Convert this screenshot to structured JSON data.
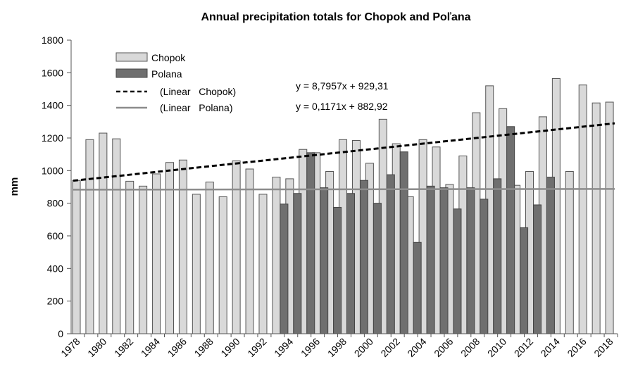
{
  "chart_data": {
    "type": "bar",
    "title": "Annual precipitation totals for Chopok and Poľana",
    "xlabel": "",
    "ylabel": "mm",
    "ylim": [
      0,
      1800
    ],
    "yticks": [
      0,
      200,
      400,
      600,
      800,
      1000,
      1200,
      1400,
      1600,
      1800
    ],
    "grid": false,
    "legend_position": "top-left",
    "categories": [
      "1978",
      "1979",
      "1980",
      "1981",
      "1982",
      "1983",
      "1984",
      "1985",
      "1986",
      "1987",
      "1988",
      "1989",
      "1990",
      "1991",
      "1992",
      "1993",
      "1994",
      "1995",
      "1996",
      "1997",
      "1998",
      "1999",
      "2000",
      "2001",
      "2002",
      "2003",
      "2004",
      "2005",
      "2006",
      "2007",
      "2008",
      "2009",
      "2010",
      "2011",
      "2012",
      "2013",
      "2014",
      "2015",
      "2016",
      "2017",
      "2018"
    ],
    "xtick_labels": [
      "1978",
      "1980",
      "1982",
      "1984",
      "1986",
      "1988",
      "1990",
      "1992",
      "1994",
      "1996",
      "1998",
      "2000",
      "2002",
      "2004",
      "2006",
      "2008",
      "2010",
      "2012",
      "2014",
      "2016",
      "2018"
    ],
    "series": [
      {
        "name": "Chopok",
        "color": "#d9d9d9",
        "values": [
          940,
          1190,
          1230,
          1195,
          935,
          905,
          980,
          1050,
          1065,
          855,
          930,
          840,
          1060,
          1010,
          855,
          960,
          950,
          1130,
          1110,
          995,
          1190,
          1185,
          1045,
          1315,
          1165,
          840,
          1190,
          1145,
          915,
          1090,
          1355,
          1520,
          1380,
          910,
          995,
          1330,
          1565,
          995,
          1525,
          1415,
          1420
        ]
      },
      {
        "name": "Polana",
        "color": "#6f6f6f",
        "values": [
          null,
          null,
          null,
          null,
          null,
          null,
          null,
          null,
          null,
          null,
          null,
          null,
          null,
          null,
          null,
          795,
          860,
          1110,
          895,
          775,
          860,
          940,
          800,
          975,
          1115,
          560,
          905,
          895,
          765,
          895,
          825,
          950,
          1270,
          650,
          790,
          960,
          null,
          null,
          null,
          null,
          null
        ]
      }
    ],
    "trendlines": [
      {
        "name": "(Linear   Chopok)",
        "style": "dashed",
        "color": "#000000",
        "slope": 8.7957,
        "intercept": 929.31,
        "equation": "y = 8,7957x + 929,31"
      },
      {
        "name": "(Linear   Polana)",
        "style": "solid",
        "color": "#8c8c8c",
        "slope": 0.1171,
        "intercept": 882.92,
        "equation": "y = 0,1171x + 882,92"
      }
    ]
  }
}
